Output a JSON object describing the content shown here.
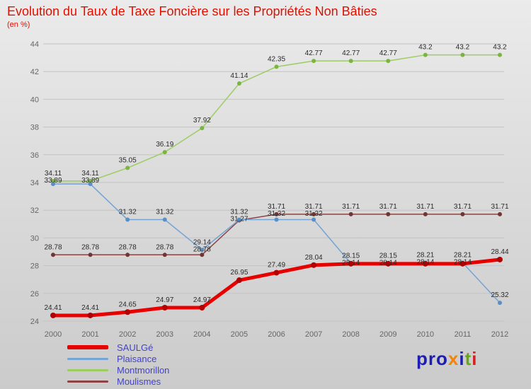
{
  "title": "Evolution du Taux de Taxe Foncière sur les Propriétés Non Bâties",
  "subtitle": "(en %)",
  "colors": {
    "title": "#e01000",
    "grid": "#c3c3c3",
    "tick_labels": "#666666",
    "data_labels": "#2a2a2a",
    "legend_text": "#4343cd"
  },
  "chart_data": {
    "type": "line",
    "x": [
      "2000",
      "2001",
      "2002",
      "2003",
      "2004",
      "2005",
      "2006",
      "2007",
      "2008",
      "2009",
      "2010",
      "2011",
      "2012"
    ],
    "yticks": [
      24,
      26,
      28,
      30,
      32,
      34,
      36,
      38,
      40,
      42,
      44
    ],
    "ylim": [
      24,
      44
    ],
    "grid": true,
    "legend_position": "bottom-left",
    "title": "Evolution du Taux de Taxe Foncière sur les Propriétés Non Bâties",
    "ylabel": "en %",
    "series": [
      {
        "name": "SAULGé",
        "color": "#e60000",
        "marker_color": "#b30000",
        "line_width": 5,
        "values": [
          24.41,
          24.41,
          24.65,
          24.97,
          24.97,
          26.95,
          27.49,
          28.04,
          28.14,
          28.14,
          28.14,
          28.14,
          28.44
        ]
      },
      {
        "name": "Plaisance",
        "color": "#74a3d4",
        "marker_color": "#5b8fc4",
        "line_width": 1.5,
        "values": [
          33.89,
          33.89,
          31.32,
          31.32,
          29.14,
          31.32,
          31.32,
          31.32,
          28.15,
          28.15,
          28.21,
          28.21,
          25.32
        ]
      },
      {
        "name": "Montmorillon",
        "color": "#9ccc62",
        "marker_color": "#7ab53e",
        "line_width": 1.5,
        "values": [
          34.11,
          34.11,
          35.05,
          36.19,
          37.92,
          41.14,
          42.35,
          42.77,
          42.77,
          42.77,
          43.2,
          43.2,
          43.2
        ]
      },
      {
        "name": "Moulismes",
        "color": "#8b4343",
        "marker_color": "#6f3636",
        "line_width": 1.5,
        "values": [
          28.78,
          28.78,
          28.78,
          28.78,
          28.78,
          31.27,
          31.71,
          31.71,
          31.71,
          31.71,
          31.71,
          31.71,
          31.71
        ]
      }
    ]
  },
  "logo": {
    "letters": [
      {
        "ch": "p",
        "color": "#1d1db5"
      },
      {
        "ch": "r",
        "color": "#1d1db5"
      },
      {
        "ch": "o",
        "color": "#1d1db5"
      },
      {
        "ch": "x",
        "color": "#f5820a"
      },
      {
        "ch": "i",
        "color": "#1d1db5"
      },
      {
        "ch": "t",
        "color": "#67a71e"
      },
      {
        "ch": "i",
        "color": "#d42020"
      }
    ]
  }
}
